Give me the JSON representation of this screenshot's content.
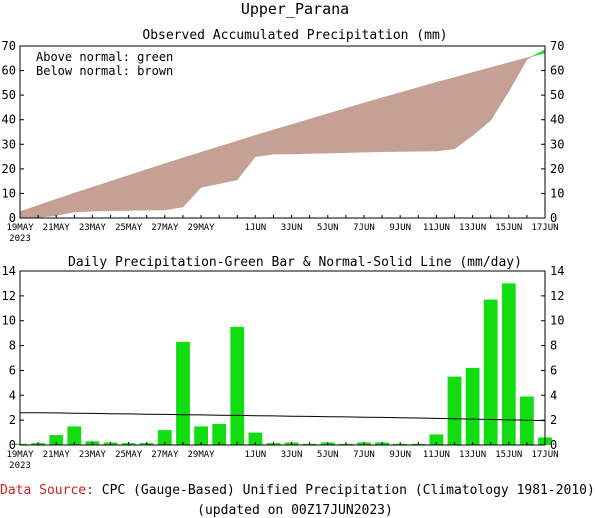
{
  "title": "Upper_Parana",
  "footer": {
    "source_label": "Data Source:",
    "source_text": "CPC (Gauge-Based) Unified Precipitation (Climatology 1981-2010)",
    "updated": "(updated on 00Z17JUN2023)"
  },
  "colors": {
    "above_normal": "#2ed62e",
    "below_normal": "#c4a095",
    "daily_bar": "#11dd11",
    "source_label": "#d02020"
  },
  "chart_data": [
    {
      "type": "area",
      "title": "Observed Accumulated Precipitation (mm)",
      "legend_lines": [
        "Above normal: green",
        "Below normal: brown"
      ],
      "legend_position": "top-left",
      "xlim": [
        0,
        29
      ],
      "ylim": [
        0,
        70
      ],
      "yticks": [
        0,
        10,
        20,
        30,
        40,
        50,
        60,
        70
      ],
      "xtick_labels": [
        {
          "i": 0,
          "label": "19MAY"
        },
        {
          "i": 2,
          "label": "21MAY"
        },
        {
          "i": 4,
          "label": "23MAY"
        },
        {
          "i": 6,
          "label": "25MAY"
        },
        {
          "i": 8,
          "label": "27MAY"
        },
        {
          "i": 10,
          "label": "29MAY"
        },
        {
          "i": 13,
          "label": "1JUN"
        },
        {
          "i": 15,
          "label": "3JUN"
        },
        {
          "i": 17,
          "label": "5JUN"
        },
        {
          "i": 19,
          "label": "7JUN"
        },
        {
          "i": 21,
          "label": "9JUN"
        },
        {
          "i": 23,
          "label": "11JUN"
        },
        {
          "i": 25,
          "label": "13JUN"
        },
        {
          "i": 27,
          "label": "15JUN"
        },
        {
          "i": 29,
          "label": "17JUN"
        }
      ],
      "year_label": "2023",
      "series": [
        {
          "name": "Observed",
          "values": [
            0,
            0.2,
            1.0,
            2.5,
            2.8,
            3.0,
            3.1,
            3.2,
            3.3,
            4.5,
            12.5,
            14.0,
            15.6,
            25.0,
            26.0,
            26.1,
            26.3,
            26.4,
            26.6,
            26.8,
            27.0,
            27.1,
            27.2,
            27.3,
            28.2,
            33.6,
            39.8,
            51.6,
            64.6,
            68.5
          ]
        },
        {
          "name": "Normal",
          "values": [
            2.6,
            5.1,
            7.6,
            10.1,
            12.5,
            14.9,
            17.3,
            19.7,
            22.1,
            24.4,
            26.7,
            29.0,
            31.3,
            33.6,
            35.8,
            38.0,
            40.2,
            42.4,
            44.6,
            46.8,
            48.9,
            51.0,
            53.1,
            55.2,
            57.2,
            59.2,
            61.2,
            63.2,
            65.2,
            67.2
          ]
        }
      ]
    },
    {
      "type": "bar",
      "title": "Daily Precipitation-Green Bar & Normal-Solid Line (mm/day)",
      "xlim": [
        0,
        29
      ],
      "ylim": [
        0,
        14
      ],
      "yticks": [
        0,
        2,
        4,
        6,
        8,
        10,
        12,
        14
      ],
      "xtick_labels": [
        {
          "i": 0,
          "label": "19MAY"
        },
        {
          "i": 2,
          "label": "21MAY"
        },
        {
          "i": 4,
          "label": "23MAY"
        },
        {
          "i": 6,
          "label": "25MAY"
        },
        {
          "i": 8,
          "label": "27MAY"
        },
        {
          "i": 10,
          "label": "29MAY"
        },
        {
          "i": 13,
          "label": "1JUN"
        },
        {
          "i": 15,
          "label": "3JUN"
        },
        {
          "i": 17,
          "label": "5JUN"
        },
        {
          "i": 19,
          "label": "7JUN"
        },
        {
          "i": 21,
          "label": "9JUN"
        },
        {
          "i": 23,
          "label": "11JUN"
        },
        {
          "i": 25,
          "label": "13JUN"
        },
        {
          "i": 27,
          "label": "15JUN"
        },
        {
          "i": 29,
          "label": "17JUN"
        }
      ],
      "year_label": "2023",
      "series": [
        {
          "name": "Daily",
          "values": [
            0.1,
            0.15,
            0.8,
            1.5,
            0.3,
            0.2,
            0.15,
            0.15,
            1.2,
            8.3,
            1.5,
            1.7,
            9.5,
            1.0,
            0.15,
            0.2,
            0.1,
            0.2,
            0.1,
            0.2,
            0.2,
            0.1,
            0.1,
            0.85,
            5.5,
            6.2,
            11.7,
            13.0,
            3.9,
            0.6
          ]
        },
        {
          "name": "Normal",
          "values": [
            2.6,
            2.6,
            2.58,
            2.56,
            2.54,
            2.52,
            2.5,
            2.48,
            2.46,
            2.44,
            2.42,
            2.4,
            2.38,
            2.36,
            2.34,
            2.32,
            2.3,
            2.28,
            2.26,
            2.24,
            2.22,
            2.2,
            2.17,
            2.14,
            2.11,
            2.08,
            2.05,
            2.02,
            1.99,
            1.96
          ]
        }
      ]
    }
  ]
}
